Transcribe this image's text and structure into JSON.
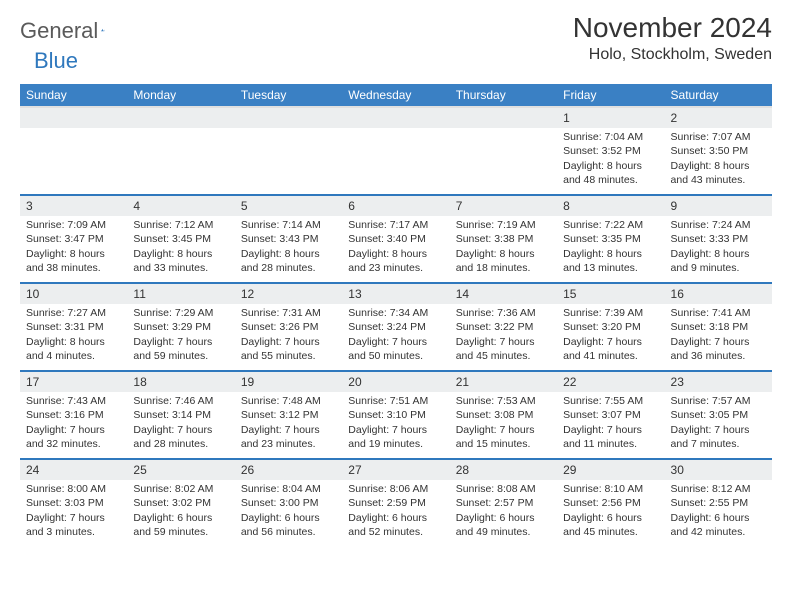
{
  "logo": {
    "word1": "General",
    "word2": "Blue"
  },
  "title": "November 2024",
  "location": "Holo, Stockholm, Sweden",
  "colors": {
    "header_bg": "#3a80c4",
    "header_text": "#ffffff",
    "rule": "#2f78bd",
    "daynum_bg": "#eceeef",
    "text": "#333333",
    "logo_gray": "#5a5a5a",
    "logo_blue": "#2f78bd"
  },
  "weekdays": [
    "Sunday",
    "Monday",
    "Tuesday",
    "Wednesday",
    "Thursday",
    "Friday",
    "Saturday"
  ],
  "weeks": [
    [
      {
        "n": "",
        "lines": []
      },
      {
        "n": "",
        "lines": []
      },
      {
        "n": "",
        "lines": []
      },
      {
        "n": "",
        "lines": []
      },
      {
        "n": "",
        "lines": []
      },
      {
        "n": "1",
        "lines": [
          "Sunrise: 7:04 AM",
          "Sunset: 3:52 PM",
          "Daylight: 8 hours",
          "and 48 minutes."
        ]
      },
      {
        "n": "2",
        "lines": [
          "Sunrise: 7:07 AM",
          "Sunset: 3:50 PM",
          "Daylight: 8 hours",
          "and 43 minutes."
        ]
      }
    ],
    [
      {
        "n": "3",
        "lines": [
          "Sunrise: 7:09 AM",
          "Sunset: 3:47 PM",
          "Daylight: 8 hours",
          "and 38 minutes."
        ]
      },
      {
        "n": "4",
        "lines": [
          "Sunrise: 7:12 AM",
          "Sunset: 3:45 PM",
          "Daylight: 8 hours",
          "and 33 minutes."
        ]
      },
      {
        "n": "5",
        "lines": [
          "Sunrise: 7:14 AM",
          "Sunset: 3:43 PM",
          "Daylight: 8 hours",
          "and 28 minutes."
        ]
      },
      {
        "n": "6",
        "lines": [
          "Sunrise: 7:17 AM",
          "Sunset: 3:40 PM",
          "Daylight: 8 hours",
          "and 23 minutes."
        ]
      },
      {
        "n": "7",
        "lines": [
          "Sunrise: 7:19 AM",
          "Sunset: 3:38 PM",
          "Daylight: 8 hours",
          "and 18 minutes."
        ]
      },
      {
        "n": "8",
        "lines": [
          "Sunrise: 7:22 AM",
          "Sunset: 3:35 PM",
          "Daylight: 8 hours",
          "and 13 minutes."
        ]
      },
      {
        "n": "9",
        "lines": [
          "Sunrise: 7:24 AM",
          "Sunset: 3:33 PM",
          "Daylight: 8 hours",
          "and 9 minutes."
        ]
      }
    ],
    [
      {
        "n": "10",
        "lines": [
          "Sunrise: 7:27 AM",
          "Sunset: 3:31 PM",
          "Daylight: 8 hours",
          "and 4 minutes."
        ]
      },
      {
        "n": "11",
        "lines": [
          "Sunrise: 7:29 AM",
          "Sunset: 3:29 PM",
          "Daylight: 7 hours",
          "and 59 minutes."
        ]
      },
      {
        "n": "12",
        "lines": [
          "Sunrise: 7:31 AM",
          "Sunset: 3:26 PM",
          "Daylight: 7 hours",
          "and 55 minutes."
        ]
      },
      {
        "n": "13",
        "lines": [
          "Sunrise: 7:34 AM",
          "Sunset: 3:24 PM",
          "Daylight: 7 hours",
          "and 50 minutes."
        ]
      },
      {
        "n": "14",
        "lines": [
          "Sunrise: 7:36 AM",
          "Sunset: 3:22 PM",
          "Daylight: 7 hours",
          "and 45 minutes."
        ]
      },
      {
        "n": "15",
        "lines": [
          "Sunrise: 7:39 AM",
          "Sunset: 3:20 PM",
          "Daylight: 7 hours",
          "and 41 minutes."
        ]
      },
      {
        "n": "16",
        "lines": [
          "Sunrise: 7:41 AM",
          "Sunset: 3:18 PM",
          "Daylight: 7 hours",
          "and 36 minutes."
        ]
      }
    ],
    [
      {
        "n": "17",
        "lines": [
          "Sunrise: 7:43 AM",
          "Sunset: 3:16 PM",
          "Daylight: 7 hours",
          "and 32 minutes."
        ]
      },
      {
        "n": "18",
        "lines": [
          "Sunrise: 7:46 AM",
          "Sunset: 3:14 PM",
          "Daylight: 7 hours",
          "and 28 minutes."
        ]
      },
      {
        "n": "19",
        "lines": [
          "Sunrise: 7:48 AM",
          "Sunset: 3:12 PM",
          "Daylight: 7 hours",
          "and 23 minutes."
        ]
      },
      {
        "n": "20",
        "lines": [
          "Sunrise: 7:51 AM",
          "Sunset: 3:10 PM",
          "Daylight: 7 hours",
          "and 19 minutes."
        ]
      },
      {
        "n": "21",
        "lines": [
          "Sunrise: 7:53 AM",
          "Sunset: 3:08 PM",
          "Daylight: 7 hours",
          "and 15 minutes."
        ]
      },
      {
        "n": "22",
        "lines": [
          "Sunrise: 7:55 AM",
          "Sunset: 3:07 PM",
          "Daylight: 7 hours",
          "and 11 minutes."
        ]
      },
      {
        "n": "23",
        "lines": [
          "Sunrise: 7:57 AM",
          "Sunset: 3:05 PM",
          "Daylight: 7 hours",
          "and 7 minutes."
        ]
      }
    ],
    [
      {
        "n": "24",
        "lines": [
          "Sunrise: 8:00 AM",
          "Sunset: 3:03 PM",
          "Daylight: 7 hours",
          "and 3 minutes."
        ]
      },
      {
        "n": "25",
        "lines": [
          "Sunrise: 8:02 AM",
          "Sunset: 3:02 PM",
          "Daylight: 6 hours",
          "and 59 minutes."
        ]
      },
      {
        "n": "26",
        "lines": [
          "Sunrise: 8:04 AM",
          "Sunset: 3:00 PM",
          "Daylight: 6 hours",
          "and 56 minutes."
        ]
      },
      {
        "n": "27",
        "lines": [
          "Sunrise: 8:06 AM",
          "Sunset: 2:59 PM",
          "Daylight: 6 hours",
          "and 52 minutes."
        ]
      },
      {
        "n": "28",
        "lines": [
          "Sunrise: 8:08 AM",
          "Sunset: 2:57 PM",
          "Daylight: 6 hours",
          "and 49 minutes."
        ]
      },
      {
        "n": "29",
        "lines": [
          "Sunrise: 8:10 AM",
          "Sunset: 2:56 PM",
          "Daylight: 6 hours",
          "and 45 minutes."
        ]
      },
      {
        "n": "30",
        "lines": [
          "Sunrise: 8:12 AM",
          "Sunset: 2:55 PM",
          "Daylight: 6 hours",
          "and 42 minutes."
        ]
      }
    ]
  ]
}
